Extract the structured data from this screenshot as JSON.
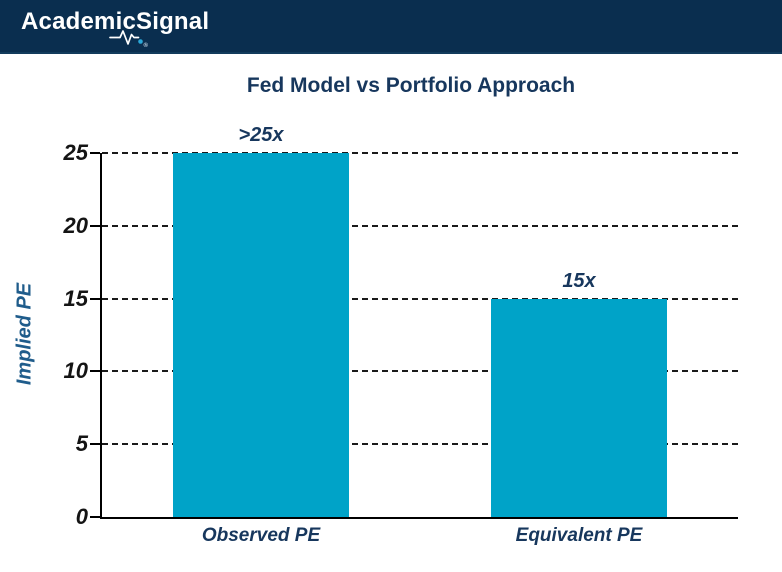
{
  "header": {
    "logo_part1": "Academic",
    "logo_part2": "Signal",
    "registered_mark": "®",
    "background_color": "#0a2e4f",
    "pulse_dot_color": "#2aa8d8"
  },
  "chart_data": {
    "type": "bar",
    "title": "Fed Model vs Portfolio Approach",
    "categories": [
      "Observed PE",
      "Equivalent PE"
    ],
    "values": [
      25,
      15
    ],
    "bar_labels": [
      ">25x",
      "15x"
    ],
    "xlabel": "",
    "ylabel": "Implied PE",
    "ylim": [
      0,
      25
    ],
    "yticks": [
      0,
      5,
      10,
      15,
      20,
      25
    ],
    "grid": "horizontal-dashed",
    "legend": "none",
    "bar_color": "#00a3c8",
    "title_color": "#17375d",
    "label_color": "#17375d",
    "ylabel_color": "#1f5c8b",
    "tick_label_color": "#141414"
  }
}
